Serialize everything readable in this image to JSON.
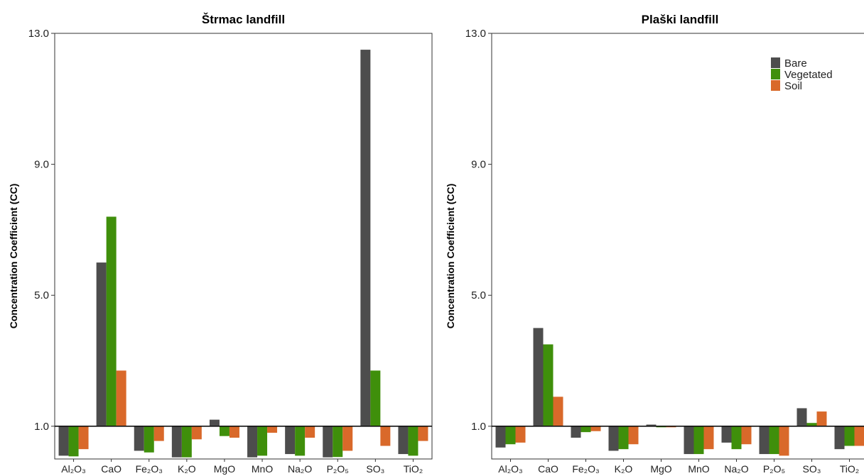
{
  "colors": {
    "Bare": "#4d4d4d",
    "Vegetated": "#3f8f0b",
    "Soil": "#d9692a"
  },
  "chart_data": [
    {
      "type": "bar",
      "title": "Štrmac landfill",
      "ylabel": "Concentration Coefficient (CC)",
      "xlabel": "",
      "ylim": [
        0.0,
        13.0
      ],
      "baseline": 1.0,
      "yticks": [
        "1.0",
        "5.0",
        "9.0",
        "13.0"
      ],
      "categories": [
        "Al₂O₃",
        "CaO",
        "Fe₂O₃",
        "K₂O",
        "MgO",
        "MnO",
        "Na₂O",
        "P₂O₅",
        "SO₃",
        "TiO₂"
      ],
      "legend_position": "none",
      "series": [
        {
          "name": "Bare",
          "values": [
            0.1,
            6.0,
            0.25,
            0.05,
            1.2,
            0.05,
            0.15,
            0.05,
            12.5,
            0.15
          ]
        },
        {
          "name": "Vegetated",
          "values": [
            0.08,
            7.4,
            0.2,
            0.05,
            0.7,
            0.1,
            0.1,
            0.06,
            2.7,
            0.1
          ]
        },
        {
          "name": "Soil",
          "values": [
            0.3,
            2.7,
            0.55,
            0.6,
            0.65,
            0.8,
            0.65,
            0.25,
            0.4,
            0.55
          ]
        }
      ]
    },
    {
      "type": "bar",
      "title": "Plaški landfill",
      "ylabel": "Concentration Coefficient (CC)",
      "xlabel": "",
      "ylim": [
        0.0,
        13.0
      ],
      "baseline": 1.0,
      "yticks": [
        "1.0",
        "5.0",
        "9.0",
        "13.0"
      ],
      "categories": [
        "Al₂O₃",
        "CaO",
        "Fe₂O₃",
        "K₂O",
        "MgO",
        "MnO",
        "Na₂O",
        "P₂O₅",
        "SO₃",
        "TiO₂"
      ],
      "legend_position": "top-right",
      "series": [
        {
          "name": "Bare",
          "values": [
            0.35,
            4.0,
            0.65,
            0.25,
            1.05,
            0.15,
            0.5,
            0.15,
            1.55,
            0.3
          ]
        },
        {
          "name": "Vegetated",
          "values": [
            0.45,
            3.5,
            0.82,
            0.3,
            1.0,
            0.15,
            0.3,
            0.15,
            1.1,
            0.4
          ]
        },
        {
          "name": "Soil",
          "values": [
            0.5,
            1.9,
            0.85,
            0.45,
            1.0,
            0.3,
            0.45,
            0.1,
            1.45,
            0.4
          ]
        }
      ]
    }
  ]
}
